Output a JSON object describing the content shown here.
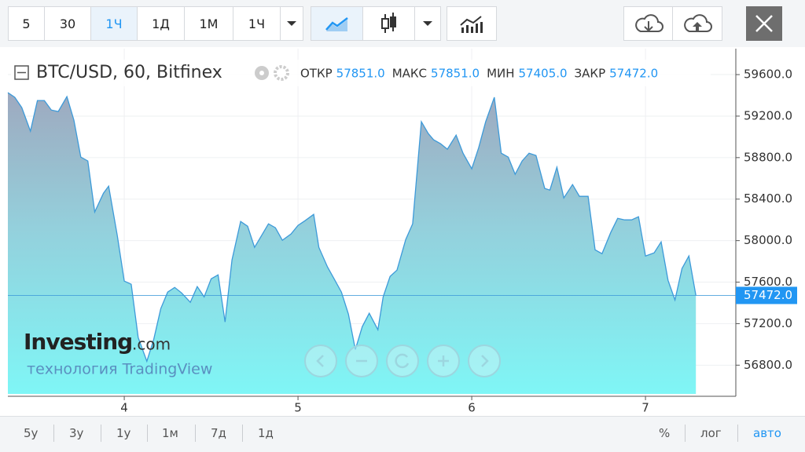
{
  "toolbar": {
    "intervals": [
      "5",
      "30",
      "1Ч",
      "1Д",
      "1М",
      "1Ч"
    ]
  },
  "chart_data": {
    "type": "area",
    "title": "BTC/USD, 60, Bitfinex",
    "ohlc": [
      {
        "label": "ОТКР",
        "value": "57851.0"
      },
      {
        "label": "МАКС",
        "value": "57851.0"
      },
      {
        "label": "МИН",
        "value": "57405.0"
      },
      {
        "label": "ЗАКР",
        "value": "57472.0"
      }
    ],
    "x": [
      3.33,
      3.37,
      3.41,
      3.46,
      3.5,
      3.54,
      3.58,
      3.62,
      3.67,
      3.71,
      3.75,
      3.79,
      3.83,
      3.88,
      3.91,
      3.96,
      4.0,
      4.04,
      4.08,
      4.13,
      4.17,
      4.21,
      4.25,
      4.29,
      4.33,
      4.38,
      4.42,
      4.46,
      4.5,
      4.54,
      4.58,
      4.62,
      4.67,
      4.71,
      4.75,
      4.79,
      4.83,
      4.87,
      4.91,
      4.96,
      5.0,
      5.04,
      5.09,
      5.12,
      5.17,
      5.21,
      5.25,
      5.29,
      5.33,
      5.37,
      5.41,
      5.46,
      5.49,
      5.53,
      5.57,
      5.62,
      5.66,
      5.71,
      5.75,
      5.78,
      5.82,
      5.86,
      5.91,
      5.95,
      6.0,
      6.04,
      6.08,
      6.13,
      6.17,
      6.21,
      6.25,
      6.29,
      6.33,
      6.37,
      6.42,
      6.45,
      6.49,
      6.53,
      6.58,
      6.62,
      6.67,
      6.71,
      6.75,
      6.8,
      6.84,
      6.88,
      6.92,
      6.96,
      7.0,
      7.05,
      7.09,
      7.13,
      7.17,
      7.21,
      7.25,
      7.29
    ],
    "values": [
      59426,
      59381,
      59282,
      59055,
      59350,
      59350,
      59259,
      59244,
      59388,
      59161,
      58805,
      58768,
      58276,
      58457,
      58525,
      58049,
      57610,
      57580,
      57066,
      56838,
      57050,
      57345,
      57504,
      57549,
      57496,
      57406,
      57557,
      57458,
      57632,
      57670,
      57216,
      57814,
      58185,
      58139,
      57935,
      58049,
      58162,
      58124,
      58003,
      58064,
      58147,
      58192,
      58253,
      57935,
      57746,
      57625,
      57504,
      57292,
      56951,
      57171,
      57300,
      57141,
      57458,
      57655,
      57716,
      58011,
      58162,
      59146,
      59032,
      58972,
      58934,
      58881,
      59017,
      58843,
      58692,
      58896,
      59146,
      59381,
      58843,
      58805,
      58639,
      58768,
      58843,
      58821,
      58503,
      58487,
      58707,
      58412,
      58540,
      58427,
      58427,
      57912,
      57874,
      58079,
      58215,
      58200,
      58200,
      58230,
      57852,
      57882,
      57988,
      57617,
      57428,
      57731,
      57852,
      57472
    ],
    "color": "#3d9ad9",
    "xlim": [
      3.33,
      7.52
    ],
    "xticks": [
      4,
      5,
      6,
      7
    ],
    "ylim": [
      56500,
      59850
    ],
    "yticks": [
      {
        "value": 56800,
        "label": "56800.0"
      },
      {
        "value": 57200,
        "label": "57200.0"
      },
      {
        "value": 57600,
        "label": "57600.0"
      },
      {
        "value": 58000,
        "label": "58000.0"
      },
      {
        "value": 58400,
        "label": "58400.0"
      },
      {
        "value": 58800,
        "label": "58800.0"
      },
      {
        "value": 59200,
        "label": "59200.0"
      },
      {
        "value": 59600,
        "label": "59600.0"
      }
    ],
    "current_price": {
      "value": 57472,
      "label": "57472.0"
    },
    "watermark": [
      "Investing",
      ".com",
      "технология TradingView"
    ]
  },
  "footer": {
    "ranges": [
      "5у",
      "3у",
      "1у",
      "1м",
      "7д",
      "1д"
    ],
    "options": [
      "%",
      "лог",
      "авто"
    ]
  }
}
